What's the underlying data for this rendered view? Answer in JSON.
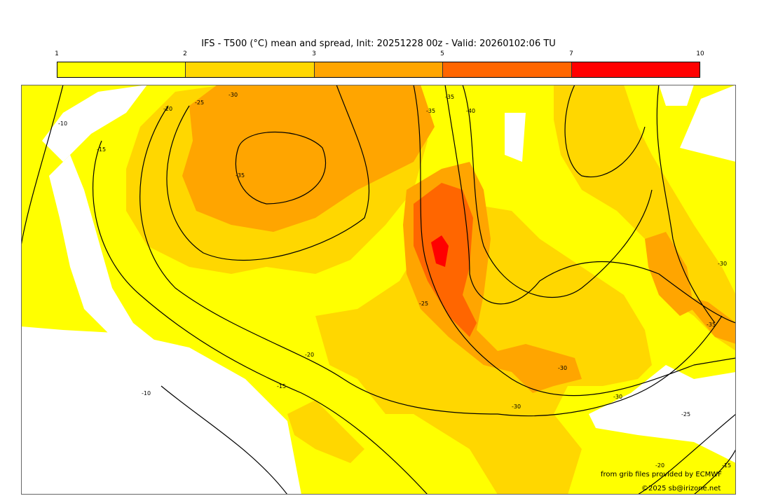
{
  "title": "IFS - T500 (°C) mean and spread, Init: 20251228 00z - Valid: 20260102:06 TU",
  "colorbar": {
    "ticks": [
      "1",
      "2",
      "3",
      "5",
      "7",
      "10"
    ],
    "colors": [
      "#ffff00",
      "#ffd700",
      "#ffa500",
      "#ff6600",
      "#ff0000"
    ]
  },
  "contour_labels": [
    "-10",
    "-15",
    "-20",
    "-25",
    "-30",
    "-35",
    "-35",
    "-40",
    "-35",
    "-30",
    "-30",
    "-35",
    "-25",
    "-30",
    "-20",
    "-15",
    "-10",
    "-25",
    "-20",
    "-15",
    "-30"
  ],
  "credits": {
    "source": "from grib files provided by ECMWF",
    "copyright": "©2025 sb@irizone.net"
  }
}
